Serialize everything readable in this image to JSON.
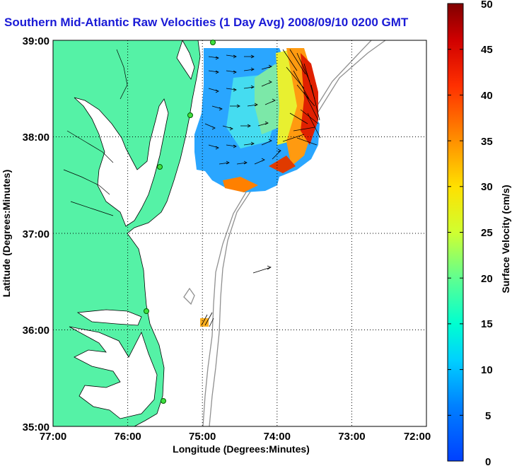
{
  "title": "Southern Mid-Atlantic Raw Velocities (1 Day Avg) 2008/09/10 0200 GMT",
  "axes": {
    "xlabel": "Longitude (Degrees:Minutes)",
    "ylabel": "Latitude (Degrees:Minutes)",
    "xticks": [
      "77:00",
      "76:00",
      "75:00",
      "74:00",
      "73:00",
      "72:00"
    ],
    "yticks": [
      "39:00",
      "38:00",
      "37:00",
      "36:00",
      "35:00"
    ]
  },
  "colorbar": {
    "label": "Surface Velocity (cm/s)",
    "ticks": [
      "50",
      "45",
      "40",
      "35",
      "30",
      "25",
      "20",
      "15",
      "10",
      "5",
      "0"
    ],
    "min": 0,
    "max": 50
  },
  "map": {
    "land_color": "#55f2a6",
    "ocean_color": "#ffffff",
    "grid": "dotted",
    "stations_count": 5
  }
}
